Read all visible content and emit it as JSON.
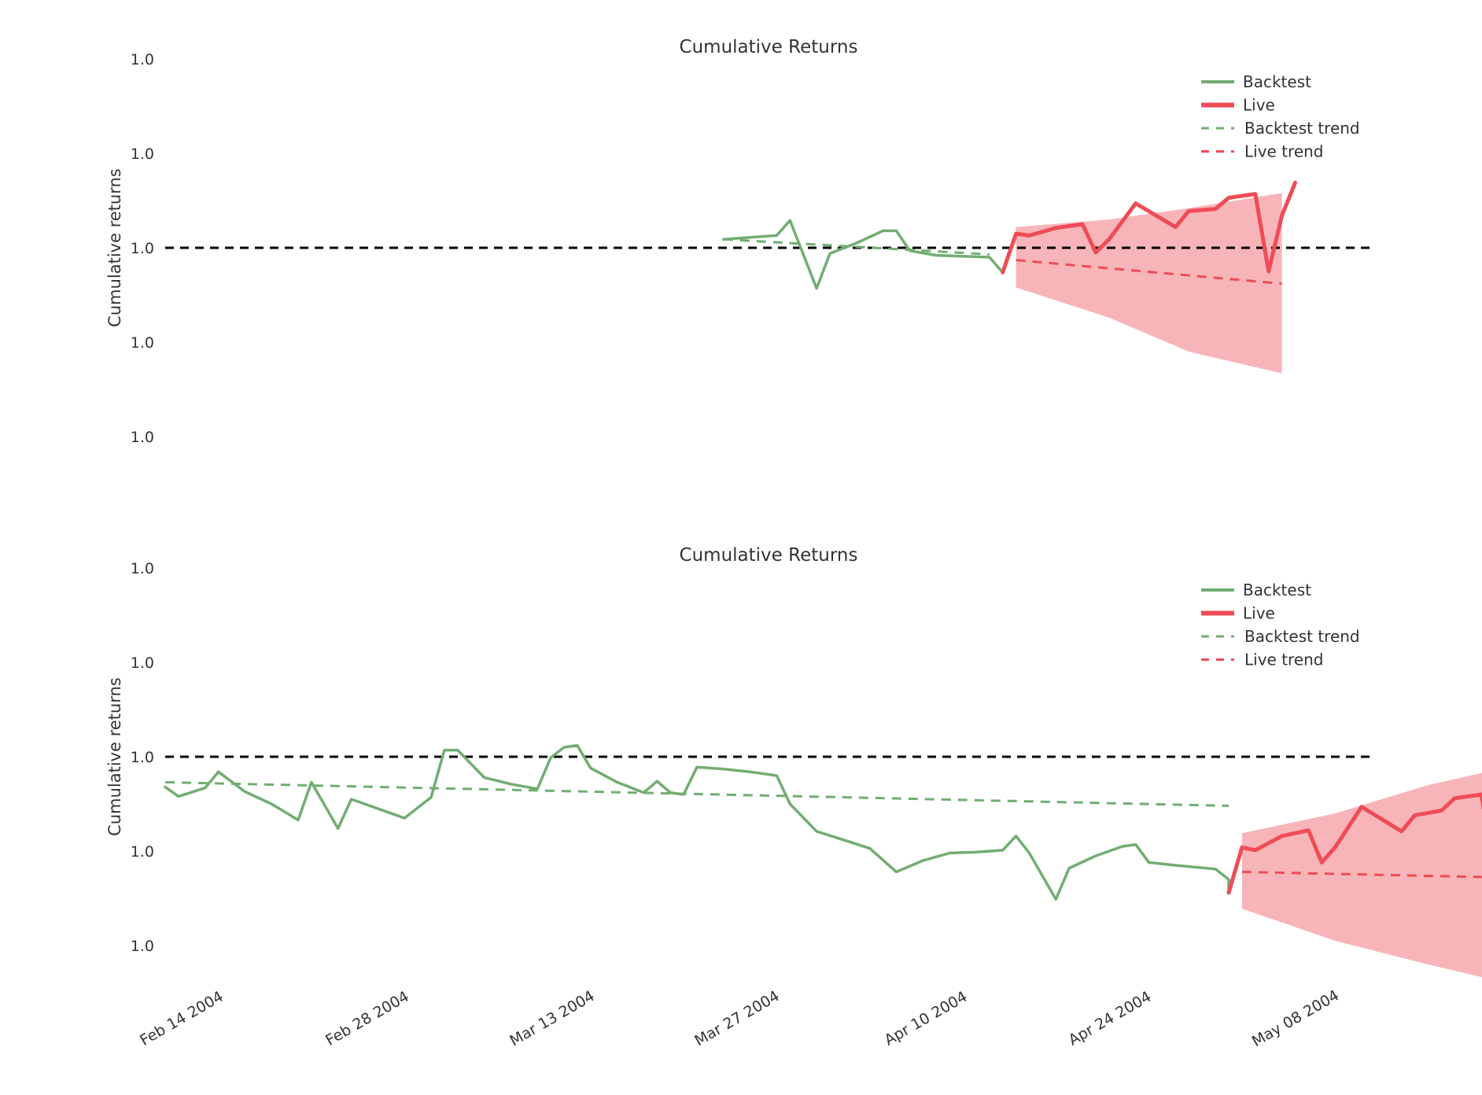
{
  "colors": {
    "backtest": "#72ad72",
    "live": "#ef4c56",
    "band": "#f8b5b9",
    "reference": "#000000",
    "text": "#333333"
  },
  "chart_data": [
    {
      "type": "line",
      "title": "Cumulative Returns",
      "ylabel": "Cumulative returns",
      "xlabel": "",
      "x_ticks": [
        "Feb 14 2004",
        "Feb 28 2004",
        "Mar 13 2004",
        "Mar 27 2004",
        "Apr 10 2004",
        "Apr 24 2004",
        "May 08 2004"
      ],
      "y_ticks": [
        "1.0",
        "1.0",
        "1.0",
        "1.0",
        "1.0"
      ],
      "y_range": [
        -2,
        2
      ],
      "reference_line": 0,
      "grid": false,
      "legend_position": "top-right",
      "legend": [
        "Backtest",
        "Live",
        "Backtest trend",
        "Live trend"
      ],
      "series": [
        {
          "name": "Backtest",
          "style": "solid",
          "color_key": "backtest",
          "points": [
            [
              "2004-03-27",
              0.09
            ],
            [
              "2004-03-29",
              0.11
            ],
            [
              "2004-03-31",
              0.13
            ],
            [
              "2004-04-01",
              0.29
            ],
            [
              "2004-04-03",
              -0.43
            ],
            [
              "2004-04-04",
              -0.06
            ],
            [
              "2004-04-06",
              0.05
            ],
            [
              "2004-04-08",
              0.18
            ],
            [
              "2004-04-09",
              0.18
            ],
            [
              "2004-04-10",
              -0.03
            ],
            [
              "2004-04-12",
              -0.08
            ],
            [
              "2004-04-14",
              -0.09
            ],
            [
              "2004-04-16",
              -0.1
            ],
            [
              "2004-04-17",
              -0.26
            ]
          ]
        },
        {
          "name": "Live",
          "style": "solid",
          "color_key": "live",
          "points": [
            [
              "2004-04-17",
              -0.26
            ],
            [
              "2004-04-18",
              0.15
            ],
            [
              "2004-04-19",
              0.13
            ],
            [
              "2004-04-21",
              0.21
            ],
            [
              "2004-04-23",
              0.25
            ],
            [
              "2004-04-24",
              -0.05
            ],
            [
              "2004-04-25",
              0.09
            ],
            [
              "2004-04-27",
              0.47
            ],
            [
              "2004-04-30",
              0.22
            ],
            [
              "2004-05-01",
              0.39
            ],
            [
              "2004-05-03",
              0.41
            ],
            [
              "2004-05-04",
              0.53
            ],
            [
              "2004-05-06",
              0.57
            ],
            [
              "2004-05-07",
              -0.25
            ],
            [
              "2004-05-08",
              0.34
            ],
            [
              "2004-05-09",
              0.69
            ]
          ]
        },
        {
          "name": "Backtest trend",
          "style": "dashed",
          "color_key": "backtest",
          "points": [
            [
              "2004-03-27",
              0.09
            ],
            [
              "2004-04-16",
              -0.07
            ]
          ]
        },
        {
          "name": "Live trend",
          "style": "dashed",
          "color_key": "live",
          "points": [
            [
              "2004-04-18",
              -0.13
            ],
            [
              "2004-05-08",
              -0.38
            ]
          ]
        }
      ],
      "band": {
        "color_key": "band",
        "upper": [
          [
            "2004-04-18",
            0.22
          ],
          [
            "2004-04-25",
            0.3
          ],
          [
            "2004-05-01",
            0.42
          ],
          [
            "2004-05-08",
            0.58
          ]
        ],
        "lower": [
          [
            "2004-04-18",
            -0.42
          ],
          [
            "2004-04-25",
            -0.74
          ],
          [
            "2004-05-01",
            -1.1
          ],
          [
            "2004-05-08",
            -1.33
          ]
        ]
      }
    },
    {
      "type": "line",
      "title": "Cumulative Returns",
      "ylabel": "Cumulative returns",
      "xlabel": "",
      "x_ticks": [
        "Feb 14 2004",
        "Feb 28 2004",
        "Mar 13 2004",
        "Mar 27 2004",
        "Apr 10 2004",
        "Apr 24 2004",
        "May 08 2004"
      ],
      "y_ticks": [
        "1.0",
        "1.0",
        "1.0",
        "1.0",
        "1.0"
      ],
      "y_range": [
        -2,
        2
      ],
      "reference_line": 0,
      "grid": false,
      "legend_position": "top-right",
      "legend": [
        "Backtest",
        "Live",
        "Backtest trend",
        "Live trend"
      ],
      "series": [
        {
          "name": "Backtest",
          "style": "solid",
          "color_key": "backtest",
          "points": [
            [
              "2004-02-14",
              -0.32
            ],
            [
              "2004-02-15",
              -0.42
            ],
            [
              "2004-02-17",
              -0.33
            ],
            [
              "2004-02-18",
              -0.16
            ],
            [
              "2004-02-20",
              -0.37
            ],
            [
              "2004-02-22",
              -0.5
            ],
            [
              "2004-02-24",
              -0.67
            ],
            [
              "2004-02-25",
              -0.27
            ],
            [
              "2004-02-27",
              -0.76
            ],
            [
              "2004-02-28",
              -0.45
            ],
            [
              "2004-03-01",
              -0.55
            ],
            [
              "2004-03-03",
              -0.65
            ],
            [
              "2004-03-05",
              -0.43
            ],
            [
              "2004-03-06",
              0.07
            ],
            [
              "2004-03-07",
              0.07
            ],
            [
              "2004-03-09",
              -0.22
            ],
            [
              "2004-03-11",
              -0.29
            ],
            [
              "2004-03-13",
              -0.34
            ],
            [
              "2004-03-14",
              -0.01
            ],
            [
              "2004-03-15",
              0.1
            ],
            [
              "2004-03-16",
              0.12
            ],
            [
              "2004-03-17",
              -0.12
            ],
            [
              "2004-03-19",
              -0.27
            ],
            [
              "2004-03-21",
              -0.38
            ],
            [
              "2004-03-22",
              -0.26
            ],
            [
              "2004-03-23",
              -0.38
            ],
            [
              "2004-03-24",
              -0.4
            ],
            [
              "2004-03-25",
              -0.11
            ],
            [
              "2004-03-27",
              -0.13
            ],
            [
              "2004-03-29",
              -0.16
            ],
            [
              "2004-03-31",
              -0.2
            ],
            [
              "2004-04-01",
              -0.5
            ],
            [
              "2004-04-03",
              -0.79
            ],
            [
              "2004-04-05",
              -0.88
            ],
            [
              "2004-04-07",
              -0.97
            ],
            [
              "2004-04-09",
              -1.22
            ],
            [
              "2004-04-11",
              -1.1
            ],
            [
              "2004-04-13",
              -1.02
            ],
            [
              "2004-04-15",
              -1.01
            ],
            [
              "2004-04-17",
              -0.99
            ],
            [
              "2004-04-18",
              -0.84
            ],
            [
              "2004-04-19",
              -1.02
            ],
            [
              "2004-04-21",
              -1.51
            ],
            [
              "2004-04-22",
              -1.18
            ],
            [
              "2004-04-24",
              -1.05
            ],
            [
              "2004-04-26",
              -0.95
            ],
            [
              "2004-04-27",
              -0.93
            ],
            [
              "2004-04-28",
              -1.12
            ],
            [
              "2004-04-30",
              -1.15
            ],
            [
              "2004-05-03",
              -1.19
            ],
            [
              "2004-05-04",
              -1.3
            ],
            [
              "2004-05-04",
              -1.44
            ]
          ]
        },
        {
          "name": "Live",
          "style": "solid",
          "color_key": "live",
          "points": [
            [
              "2004-05-04",
              -1.44
            ],
            [
              "2004-05-05",
              -0.96
            ],
            [
              "2004-05-06",
              -0.99
            ],
            [
              "2004-05-08",
              -0.84
            ],
            [
              "2004-05-10",
              -0.78
            ],
            [
              "2004-05-11",
              -1.12
            ],
            [
              "2004-05-12",
              -0.96
            ],
            [
              "2004-05-14",
              -0.53
            ],
            [
              "2004-05-17",
              -0.79
            ],
            [
              "2004-05-18",
              -0.62
            ],
            [
              "2004-05-20",
              -0.57
            ],
            [
              "2004-05-21",
              -0.44
            ],
            [
              "2004-05-23",
              -0.4
            ],
            [
              "2004-05-24",
              -1.21
            ],
            [
              "2004-05-25",
              -0.53
            ],
            [
              "2004-05-26",
              -0.2
            ]
          ]
        },
        {
          "name": "Backtest trend",
          "style": "dashed",
          "color_key": "backtest",
          "points": [
            [
              "2004-02-14",
              -0.27
            ],
            [
              "2004-05-04",
              -0.52
            ]
          ]
        },
        {
          "name": "Live trend",
          "style": "dashed",
          "color_key": "live",
          "points": [
            [
              "2004-05-05",
              -1.22
            ],
            [
              "2004-05-25",
              -1.28
            ]
          ]
        }
      ],
      "band": {
        "color_key": "band",
        "upper": [
          [
            "2004-05-05",
            -0.81
          ],
          [
            "2004-05-12",
            -0.6
          ],
          [
            "2004-05-19",
            -0.3
          ],
          [
            "2004-05-25",
            -0.11
          ]
        ],
        "lower": [
          [
            "2004-05-05",
            -1.61
          ],
          [
            "2004-05-12",
            -1.95
          ],
          [
            "2004-05-19",
            -2.2
          ],
          [
            "2004-05-25",
            -2.4
          ]
        ]
      }
    }
  ]
}
